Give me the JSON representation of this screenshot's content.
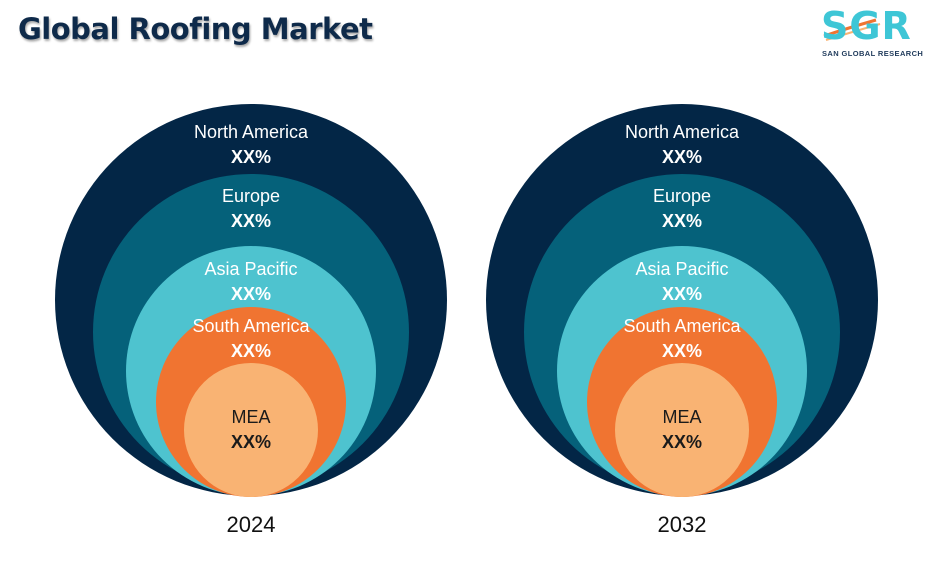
{
  "title": "Global Roofing Market",
  "logo": {
    "letters": "SGR",
    "tagline": "SAN GLOBAL RESEARCH"
  },
  "colors": {
    "North America": "#032646",
    "Europe": "#05617a",
    "Asia Pacific": "#4ec3cf",
    "South America": "#f07431",
    "MEA": "#f9b373"
  },
  "chart_data": [
    {
      "type": "nested-circles",
      "year": "2024",
      "segments": [
        {
          "region": "North America",
          "value": "XX%"
        },
        {
          "region": "Europe",
          "value": "XX%"
        },
        {
          "region": "Asia Pacific",
          "value": "XX%"
        },
        {
          "region": "South America",
          "value": "XX%"
        },
        {
          "region": "MEA",
          "value": "XX%"
        }
      ]
    },
    {
      "type": "nested-circles",
      "year": "2032",
      "segments": [
        {
          "region": "North America",
          "value": "XX%"
        },
        {
          "region": "Europe",
          "value": "XX%"
        },
        {
          "region": "Asia Pacific",
          "value": "XX%"
        },
        {
          "region": "South America",
          "value": "XX%"
        },
        {
          "region": "MEA",
          "value": "XX%"
        }
      ]
    }
  ]
}
